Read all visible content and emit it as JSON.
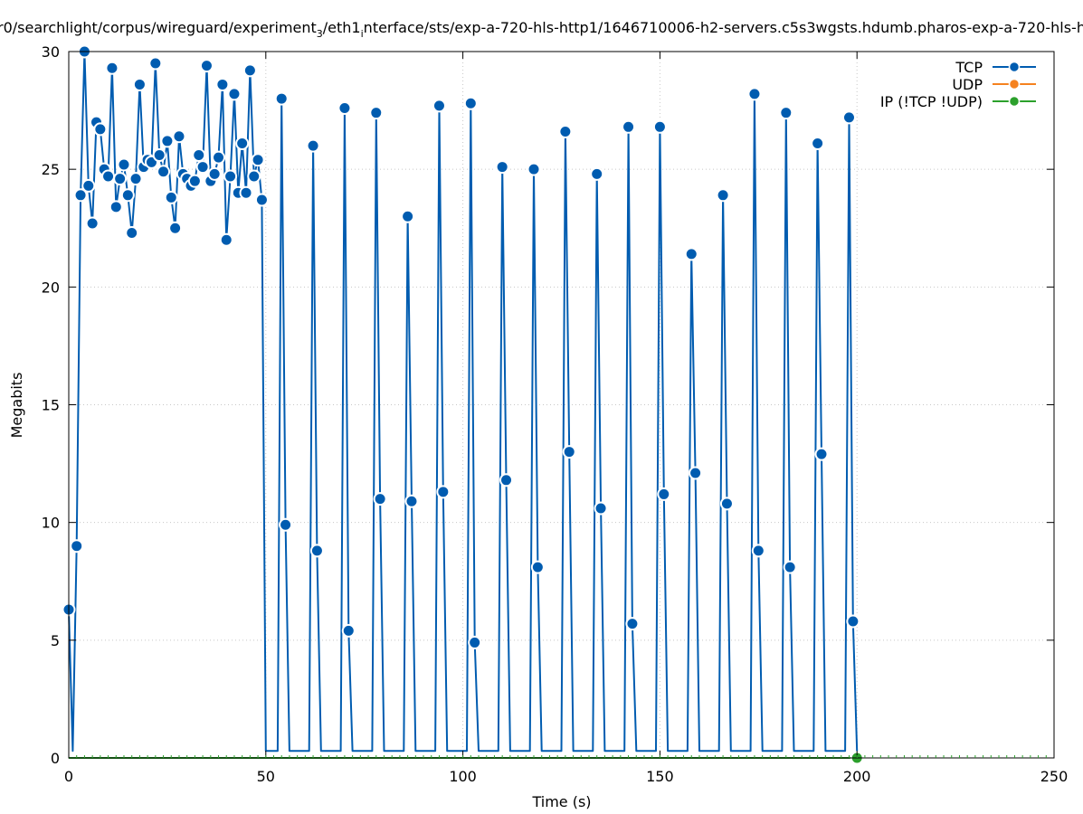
{
  "chart_data": {
    "type": "line",
    "title": "r0/searchlight/corpus/wireguard/experiment",
    "title_sub": "3",
    "title_mid": "/eth1",
    "title_sub2": "i",
    "title_rest": "nterface/sts/exp-a-720-hls-http1/1646710006-h2-servers.c5s3wgsts.hdumb.pharos-exp-a-720-hls-h",
    "xlabel": "Time (s)",
    "ylabel": "Megabits",
    "xlim": [
      0,
      250
    ],
    "ylim": [
      0,
      30
    ],
    "xticks": [
      0,
      50,
      100,
      150,
      200,
      250
    ],
    "yticks": [
      0,
      5,
      10,
      15,
      20,
      25,
      30
    ],
    "grid": true,
    "legend_position": "top-right",
    "colors": {
      "TCP": "#005cb0",
      "UDP": "#f5821f",
      "IP": "#2ca02c"
    },
    "series": [
      {
        "name": "TCP",
        "color": "#005cb0",
        "points": [
          [
            0,
            6.3
          ],
          [
            1,
            0.3
          ],
          [
            2,
            9.0
          ],
          [
            3,
            23.9
          ],
          [
            4,
            30.0
          ],
          [
            5,
            24.3
          ],
          [
            6,
            22.7
          ],
          [
            7,
            27.0
          ],
          [
            8,
            26.7
          ],
          [
            9,
            25.0
          ],
          [
            10,
            24.7
          ],
          [
            11,
            29.3
          ],
          [
            12,
            23.4
          ],
          [
            13,
            24.6
          ],
          [
            14,
            25.2
          ],
          [
            15,
            23.9
          ],
          [
            16,
            22.3
          ],
          [
            17,
            24.6
          ],
          [
            18,
            28.6
          ],
          [
            19,
            25.1
          ],
          [
            20,
            25.4
          ],
          [
            21,
            25.3
          ],
          [
            22,
            29.5
          ],
          [
            23,
            25.6
          ],
          [
            24,
            24.9
          ],
          [
            25,
            26.2
          ],
          [
            26,
            23.8
          ],
          [
            27,
            22.5
          ],
          [
            28,
            26.4
          ],
          [
            29,
            24.8
          ],
          [
            30,
            24.6
          ],
          [
            31,
            24.3
          ],
          [
            32,
            24.5
          ],
          [
            33,
            25.6
          ],
          [
            34,
            25.1
          ],
          [
            35,
            29.4
          ],
          [
            36,
            24.5
          ],
          [
            37,
            24.8
          ],
          [
            38,
            25.5
          ],
          [
            39,
            28.6
          ],
          [
            40,
            22.0
          ],
          [
            41,
            24.7
          ],
          [
            42,
            28.2
          ],
          [
            43,
            24.0
          ],
          [
            44,
            26.1
          ],
          [
            45,
            24.0
          ],
          [
            46,
            29.2
          ],
          [
            47,
            24.7
          ],
          [
            48,
            25.4
          ],
          [
            49,
            23.7
          ],
          [
            50,
            0.3
          ],
          [
            51,
            0.3
          ],
          [
            52,
            0.3
          ],
          [
            53,
            0.3
          ],
          [
            54,
            28.0
          ],
          [
            55,
            9.9
          ],
          [
            56,
            0.3
          ],
          [
            57,
            0.3
          ],
          [
            58,
            0.3
          ],
          [
            59,
            0.3
          ],
          [
            60,
            0.3
          ],
          [
            61,
            0.3
          ],
          [
            62,
            26.0
          ],
          [
            63,
            8.8
          ],
          [
            64,
            0.3
          ],
          [
            65,
            0.3
          ],
          [
            66,
            0.3
          ],
          [
            67,
            0.3
          ],
          [
            68,
            0.3
          ],
          [
            69,
            0.3
          ],
          [
            70,
            27.6
          ],
          [
            71,
            5.4
          ],
          [
            72,
            0.3
          ],
          [
            73,
            0.3
          ],
          [
            74,
            0.3
          ],
          [
            75,
            0.3
          ],
          [
            76,
            0.3
          ],
          [
            77,
            0.3
          ],
          [
            78,
            27.4
          ],
          [
            79,
            11.0
          ],
          [
            80,
            0.3
          ],
          [
            81,
            0.3
          ],
          [
            82,
            0.3
          ],
          [
            83,
            0.3
          ],
          [
            84,
            0.3
          ],
          [
            85,
            0.3
          ],
          [
            86,
            23.0
          ],
          [
            87,
            10.9
          ],
          [
            88,
            0.3
          ],
          [
            89,
            0.3
          ],
          [
            90,
            0.3
          ],
          [
            91,
            0.3
          ],
          [
            92,
            0.3
          ],
          [
            93,
            0.3
          ],
          [
            94,
            27.7
          ],
          [
            95,
            11.3
          ],
          [
            96,
            0.3
          ],
          [
            97,
            0.3
          ],
          [
            98,
            0.3
          ],
          [
            99,
            0.3
          ],
          [
            100,
            0.3
          ],
          [
            101,
            0.3
          ],
          [
            102,
            27.8
          ],
          [
            103,
            4.9
          ],
          [
            104,
            0.3
          ],
          [
            105,
            0.3
          ],
          [
            106,
            0.3
          ],
          [
            107,
            0.3
          ],
          [
            108,
            0.3
          ],
          [
            109,
            0.3
          ],
          [
            110,
            25.1
          ],
          [
            111,
            11.8
          ],
          [
            112,
            0.3
          ],
          [
            113,
            0.3
          ],
          [
            114,
            0.3
          ],
          [
            115,
            0.3
          ],
          [
            116,
            0.3
          ],
          [
            117,
            0.3
          ],
          [
            118,
            25.0
          ],
          [
            119,
            8.1
          ],
          [
            120,
            0.3
          ],
          [
            121,
            0.3
          ],
          [
            122,
            0.3
          ],
          [
            123,
            0.3
          ],
          [
            124,
            0.3
          ],
          [
            125,
            0.3
          ],
          [
            126,
            26.6
          ],
          [
            127,
            13.0
          ],
          [
            128,
            0.3
          ],
          [
            129,
            0.3
          ],
          [
            130,
            0.3
          ],
          [
            131,
            0.3
          ],
          [
            132,
            0.3
          ],
          [
            133,
            0.3
          ],
          [
            134,
            24.8
          ],
          [
            135,
            10.6
          ],
          [
            136,
            0.3
          ],
          [
            137,
            0.3
          ],
          [
            138,
            0.3
          ],
          [
            139,
            0.3
          ],
          [
            140,
            0.3
          ],
          [
            141,
            0.3
          ],
          [
            142,
            26.8
          ],
          [
            143,
            5.7
          ],
          [
            144,
            0.3
          ],
          [
            145,
            0.3
          ],
          [
            146,
            0.3
          ],
          [
            147,
            0.3
          ],
          [
            148,
            0.3
          ],
          [
            149,
            0.3
          ],
          [
            150,
            26.8
          ],
          [
            151,
            11.2
          ],
          [
            152,
            0.3
          ],
          [
            153,
            0.3
          ],
          [
            154,
            0.3
          ],
          [
            155,
            0.3
          ],
          [
            156,
            0.3
          ],
          [
            157,
            0.3
          ],
          [
            158,
            21.4
          ],
          [
            159,
            12.1
          ],
          [
            160,
            0.3
          ],
          [
            161,
            0.3
          ],
          [
            162,
            0.3
          ],
          [
            163,
            0.3
          ],
          [
            164,
            0.3
          ],
          [
            165,
            0.3
          ],
          [
            166,
            23.9
          ],
          [
            167,
            10.8
          ],
          [
            168,
            0.3
          ],
          [
            169,
            0.3
          ],
          [
            170,
            0.3
          ],
          [
            171,
            0.3
          ],
          [
            172,
            0.3
          ],
          [
            173,
            0.3
          ],
          [
            174,
            28.2
          ],
          [
            175,
            8.8
          ],
          [
            176,
            0.3
          ],
          [
            177,
            0.3
          ],
          [
            178,
            0.3
          ],
          [
            179,
            0.3
          ],
          [
            180,
            0.3
          ],
          [
            181,
            0.3
          ],
          [
            182,
            27.4
          ],
          [
            183,
            8.1
          ],
          [
            184,
            0.3
          ],
          [
            185,
            0.3
          ],
          [
            186,
            0.3
          ],
          [
            187,
            0.3
          ],
          [
            188,
            0.3
          ],
          [
            189,
            0.3
          ],
          [
            190,
            26.1
          ],
          [
            191,
            12.9
          ],
          [
            192,
            0.3
          ],
          [
            193,
            0.3
          ],
          [
            194,
            0.3
          ],
          [
            195,
            0.3
          ],
          [
            196,
            0.3
          ],
          [
            197,
            0.3
          ],
          [
            198,
            27.2
          ],
          [
            199,
            5.8
          ],
          [
            200,
            0.3
          ]
        ],
        "markers": [
          [
            0,
            6.3
          ],
          [
            2,
            9.0
          ],
          [
            3,
            23.9
          ],
          [
            4,
            30.0
          ],
          [
            5,
            24.3
          ],
          [
            6,
            22.7
          ],
          [
            7,
            27.0
          ],
          [
            8,
            26.7
          ],
          [
            9,
            25.0
          ],
          [
            10,
            24.7
          ],
          [
            11,
            29.3
          ],
          [
            12,
            23.4
          ],
          [
            13,
            24.6
          ],
          [
            14,
            25.2
          ],
          [
            15,
            23.9
          ],
          [
            16,
            22.3
          ],
          [
            17,
            24.6
          ],
          [
            18,
            28.6
          ],
          [
            19,
            25.1
          ],
          [
            20,
            25.4
          ],
          [
            21,
            25.3
          ],
          [
            22,
            29.5
          ],
          [
            23,
            25.6
          ],
          [
            24,
            24.9
          ],
          [
            25,
            26.2
          ],
          [
            26,
            23.8
          ],
          [
            27,
            22.5
          ],
          [
            28,
            26.4
          ],
          [
            29,
            24.8
          ],
          [
            30,
            24.6
          ],
          [
            31,
            24.3
          ],
          [
            32,
            24.5
          ],
          [
            33,
            25.6
          ],
          [
            34,
            25.1
          ],
          [
            35,
            29.4
          ],
          [
            36,
            24.5
          ],
          [
            37,
            24.8
          ],
          [
            38,
            25.5
          ],
          [
            39,
            28.6
          ],
          [
            40,
            22.0
          ],
          [
            41,
            24.7
          ],
          [
            42,
            28.2
          ],
          [
            43,
            24.0
          ],
          [
            44,
            26.1
          ],
          [
            45,
            24.0
          ],
          [
            46,
            29.2
          ],
          [
            47,
            24.7
          ],
          [
            48,
            25.4
          ],
          [
            49,
            23.7
          ],
          [
            54,
            28.0
          ],
          [
            55,
            9.9
          ],
          [
            62,
            26.0
          ],
          [
            63,
            8.8
          ],
          [
            70,
            27.6
          ],
          [
            71,
            5.4
          ],
          [
            78,
            27.4
          ],
          [
            79,
            11.0
          ],
          [
            86,
            23.0
          ],
          [
            87,
            10.9
          ],
          [
            94,
            27.7
          ],
          [
            95,
            11.3
          ],
          [
            102,
            27.8
          ],
          [
            103,
            4.9
          ],
          [
            110,
            25.1
          ],
          [
            111,
            11.8
          ],
          [
            118,
            25.0
          ],
          [
            119,
            8.1
          ],
          [
            126,
            26.6
          ],
          [
            127,
            13.0
          ],
          [
            134,
            24.8
          ],
          [
            135,
            10.6
          ],
          [
            142,
            26.8
          ],
          [
            143,
            5.7
          ],
          [
            150,
            26.8
          ],
          [
            151,
            11.2
          ],
          [
            158,
            21.4
          ],
          [
            159,
            12.1
          ],
          [
            166,
            23.9
          ],
          [
            167,
            10.8
          ],
          [
            174,
            28.2
          ],
          [
            175,
            8.8
          ],
          [
            182,
            27.4
          ],
          [
            183,
            8.1
          ],
          [
            190,
            26.1
          ],
          [
            191,
            12.9
          ],
          [
            198,
            27.2
          ],
          [
            199,
            5.8
          ]
        ]
      },
      {
        "name": "UDP",
        "color": "#f5821f",
        "points": [],
        "markers": []
      },
      {
        "name": "IP (!TCP  !UDP)",
        "color": "#2ca02c",
        "baseline_to": 200,
        "points": [
          [
            0,
            0
          ],
          [
            200,
            0
          ]
        ],
        "markers": [
          [
            200,
            0
          ]
        ]
      }
    ],
    "legend": [
      {
        "label": "TCP",
        "color": "#005cb0"
      },
      {
        "label": "UDP",
        "color": "#f5821f"
      },
      {
        "label": "IP (!TCP  !UDP)",
        "color": "#2ca02c"
      }
    ]
  }
}
